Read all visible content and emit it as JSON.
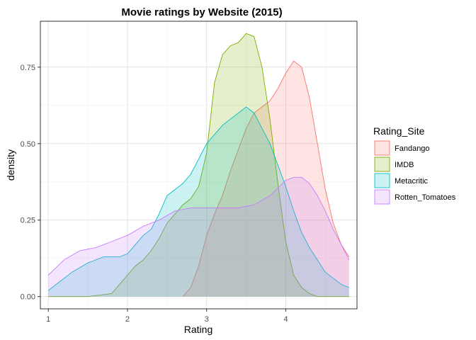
{
  "chart_data": {
    "type": "area",
    "title": "Movie ratings by Website (2015)",
    "xlabel": "Rating",
    "ylabel": "density",
    "xlim": [
      0.9,
      4.9
    ],
    "ylim": [
      -0.04,
      0.9
    ],
    "x_ticks": [
      1,
      2,
      3,
      4
    ],
    "x_tick_labels": [
      "1",
      "2",
      "3",
      "4"
    ],
    "y_ticks": [
      0,
      0.25,
      0.5,
      0.75
    ],
    "y_tick_labels": [
      "0.00",
      "0.25",
      "0.50",
      "0.75"
    ],
    "grid": true,
    "legend": {
      "title": "Rating_Site",
      "position": "right"
    },
    "series": [
      {
        "name": "Fandango",
        "color": "#F8766D",
        "points": [
          [
            2.7,
            0
          ],
          [
            2.8,
            0.03
          ],
          [
            2.9,
            0.1
          ],
          [
            3.0,
            0.2
          ],
          [
            3.1,
            0.27
          ],
          [
            3.2,
            0.33
          ],
          [
            3.3,
            0.41
          ],
          [
            3.4,
            0.48
          ],
          [
            3.5,
            0.55
          ],
          [
            3.6,
            0.6
          ],
          [
            3.7,
            0.62
          ],
          [
            3.8,
            0.64
          ],
          [
            3.9,
            0.68
          ],
          [
            4.0,
            0.73
          ],
          [
            4.1,
            0.77
          ],
          [
            4.2,
            0.75
          ],
          [
            4.3,
            0.65
          ],
          [
            4.4,
            0.5
          ],
          [
            4.5,
            0.35
          ],
          [
            4.6,
            0.24
          ],
          [
            4.7,
            0.17
          ],
          [
            4.8,
            0.13
          ]
        ]
      },
      {
        "name": "IMDB",
        "color": "#7CAE00",
        "points": [
          [
            1.0,
            0
          ],
          [
            1.5,
            0
          ],
          [
            1.8,
            0.01
          ],
          [
            1.9,
            0.04
          ],
          [
            2.0,
            0.07
          ],
          [
            2.1,
            0.1
          ],
          [
            2.2,
            0.12
          ],
          [
            2.3,
            0.15
          ],
          [
            2.4,
            0.19
          ],
          [
            2.5,
            0.24
          ],
          [
            2.6,
            0.27
          ],
          [
            2.7,
            0.3
          ],
          [
            2.8,
            0.32
          ],
          [
            2.9,
            0.36
          ],
          [
            3.0,
            0.47
          ],
          [
            3.1,
            0.7
          ],
          [
            3.2,
            0.79
          ],
          [
            3.3,
            0.82
          ],
          [
            3.4,
            0.83
          ],
          [
            3.5,
            0.86
          ],
          [
            3.6,
            0.85
          ],
          [
            3.7,
            0.75
          ],
          [
            3.8,
            0.58
          ],
          [
            3.9,
            0.37
          ],
          [
            4.0,
            0.18
          ],
          [
            4.1,
            0.07
          ],
          [
            4.2,
            0.03
          ],
          [
            4.3,
            0.01
          ],
          [
            4.4,
            0
          ],
          [
            4.8,
            0
          ]
        ]
      },
      {
        "name": "Metacritic",
        "color": "#00BFC4",
        "points": [
          [
            1.0,
            0.02
          ],
          [
            1.1,
            0.04
          ],
          [
            1.3,
            0.08
          ],
          [
            1.5,
            0.11
          ],
          [
            1.7,
            0.13
          ],
          [
            1.9,
            0.13
          ],
          [
            2.0,
            0.14
          ],
          [
            2.1,
            0.17
          ],
          [
            2.2,
            0.2
          ],
          [
            2.3,
            0.22
          ],
          [
            2.4,
            0.27
          ],
          [
            2.5,
            0.33
          ],
          [
            2.6,
            0.35
          ],
          [
            2.7,
            0.37
          ],
          [
            2.8,
            0.4
          ],
          [
            2.9,
            0.45
          ],
          [
            3.0,
            0.5
          ],
          [
            3.1,
            0.53
          ],
          [
            3.2,
            0.56
          ],
          [
            3.3,
            0.58
          ],
          [
            3.4,
            0.6
          ],
          [
            3.5,
            0.62
          ],
          [
            3.6,
            0.6
          ],
          [
            3.7,
            0.55
          ],
          [
            3.8,
            0.5
          ],
          [
            3.9,
            0.43
          ],
          [
            4.0,
            0.36
          ],
          [
            4.1,
            0.28
          ],
          [
            4.2,
            0.21
          ],
          [
            4.3,
            0.16
          ],
          [
            4.4,
            0.12
          ],
          [
            4.5,
            0.08
          ],
          [
            4.6,
            0.06
          ],
          [
            4.7,
            0.04
          ],
          [
            4.8,
            0.03
          ]
        ]
      },
      {
        "name": "Rotten_Tomatoes",
        "color": "#C77CFF",
        "points": [
          [
            1.0,
            0.07
          ],
          [
            1.2,
            0.12
          ],
          [
            1.4,
            0.15
          ],
          [
            1.6,
            0.16
          ],
          [
            1.8,
            0.18
          ],
          [
            2.0,
            0.2
          ],
          [
            2.2,
            0.23
          ],
          [
            2.4,
            0.25
          ],
          [
            2.6,
            0.28
          ],
          [
            2.8,
            0.29
          ],
          [
            3.0,
            0.29
          ],
          [
            3.2,
            0.29
          ],
          [
            3.4,
            0.29
          ],
          [
            3.6,
            0.3
          ],
          [
            3.8,
            0.33
          ],
          [
            4.0,
            0.38
          ],
          [
            4.1,
            0.39
          ],
          [
            4.2,
            0.39
          ],
          [
            4.3,
            0.37
          ],
          [
            4.4,
            0.33
          ],
          [
            4.5,
            0.28
          ],
          [
            4.6,
            0.22
          ],
          [
            4.7,
            0.17
          ],
          [
            4.8,
            0.12
          ]
        ]
      }
    ]
  }
}
